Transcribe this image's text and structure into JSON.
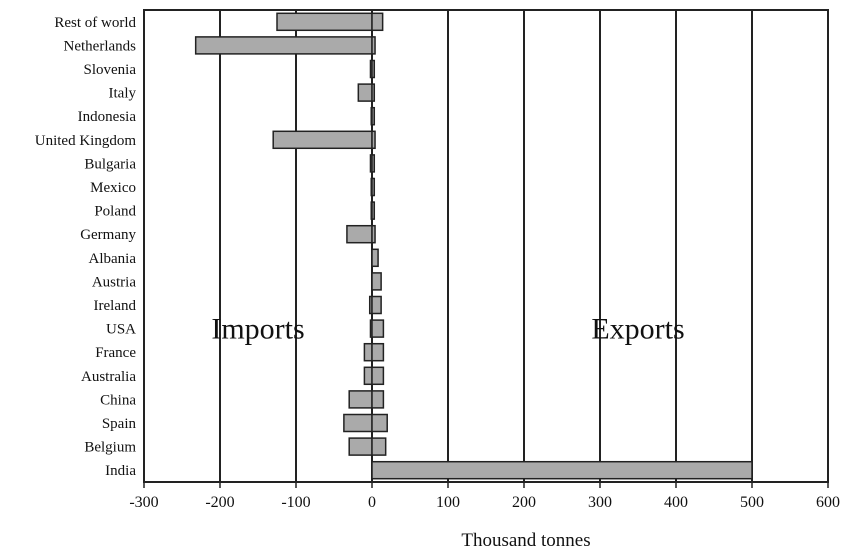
{
  "chart_data": {
    "type": "bar",
    "orientation": "horizontal",
    "xlabel": "Thousand tonnes",
    "xlim": [
      -300,
      600
    ],
    "xticks": [
      -300,
      -200,
      -100,
      0,
      100,
      200,
      300,
      400,
      500,
      600
    ],
    "vertical_grid": true,
    "annotations": [
      "Imports",
      "Exports"
    ],
    "categories": [
      "Rest of world",
      "Netherlands",
      "Slovenia",
      "Italy",
      "Indonesia",
      "United Kingdom",
      "Bulgaria",
      "Mexico",
      "Poland",
      "Germany",
      "Albania",
      "Austria",
      "Ireland",
      "USA",
      "France",
      "Australia",
      "China",
      "Spain",
      "Belgium",
      "India"
    ],
    "series": [
      {
        "values": [
          -125,
          -232,
          -2,
          -18,
          -1,
          -130,
          -2,
          -1,
          -1,
          -33,
          0,
          0,
          -3,
          -2,
          -10,
          -10,
          -30,
          -37,
          -30,
          0
        ]
      },
      {
        "values": [
          14,
          4,
          3,
          3,
          3,
          4,
          3,
          3,
          3,
          4,
          8,
          12,
          12,
          15,
          15,
          15,
          15,
          20,
          18,
          500
        ]
      }
    ],
    "bar_fill": "#aaaaaa",
    "bar_stroke": "#222222"
  }
}
